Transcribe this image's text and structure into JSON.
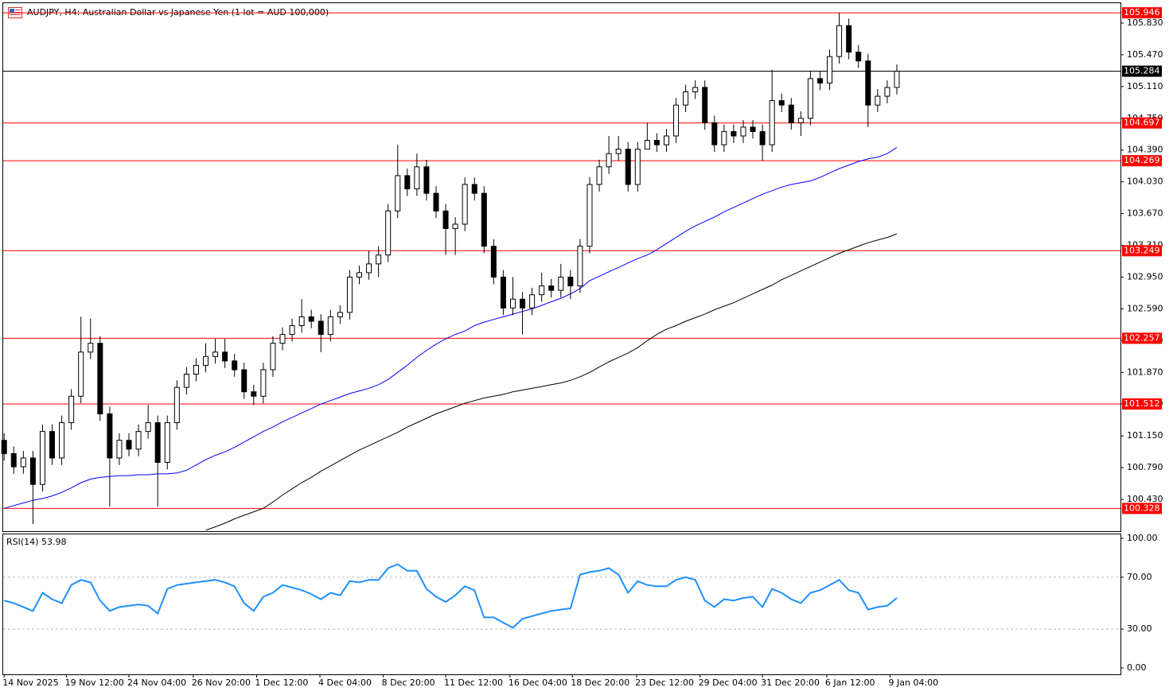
{
  "chart_data": [
    {
      "type": "candlestick",
      "title": "AUDJPY, H4:  Australian Dollar vs Japanese Yen (1 lot = AUD 100,000)",
      "up_color": "#ffffff",
      "down_color": "#000000",
      "wick_color": "#000000",
      "open": [
        101.1,
        100.95,
        100.8,
        100.9,
        100.6,
        101.2,
        100.9,
        101.3,
        101.6,
        102.1,
        102.2,
        101.4,
        100.9,
        101.1,
        101.0,
        101.2,
        101.3,
        100.85,
        101.3,
        101.7,
        101.85,
        101.95,
        102.05,
        102.1,
        102.0,
        101.9,
        101.65,
        101.6,
        101.9,
        102.2,
        102.3,
        102.4,
        102.5,
        102.45,
        102.3,
        102.5,
        102.55,
        102.95,
        103.0,
        103.1,
        103.2,
        103.7,
        104.1,
        103.95,
        104.2,
        103.9,
        103.7,
        103.5,
        103.55,
        104.0,
        103.9,
        103.3,
        102.95,
        102.6,
        102.7,
        102.6,
        102.75,
        102.85,
        102.8,
        102.95,
        102.85,
        103.3,
        104.0,
        104.2,
        104.35,
        104.4,
        104.0,
        104.4,
        104.5,
        104.45,
        104.55,
        104.9,
        105.05,
        105.1,
        104.7,
        104.45,
        104.6,
        104.55,
        104.65,
        104.6,
        104.45,
        104.95,
        104.9,
        104.7,
        104.75,
        105.2,
        105.15,
        105.45,
        105.8,
        105.5,
        105.4,
        104.9,
        105.0,
        105.1
      ],
      "high": [
        101.18,
        101.03,
        100.98,
        100.98,
        101.28,
        101.28,
        101.38,
        101.68,
        102.5,
        102.48,
        102.28,
        101.48,
        101.18,
        101.18,
        101.28,
        101.5,
        101.38,
        101.38,
        101.78,
        101.93,
        102.03,
        102.2,
        102.25,
        102.25,
        102.08,
        101.98,
        101.73,
        101.98,
        102.28,
        102.38,
        102.48,
        102.7,
        102.58,
        102.53,
        102.58,
        102.63,
        103.03,
        103.08,
        103.25,
        103.3,
        103.78,
        104.45,
        104.18,
        104.35,
        104.28,
        103.98,
        103.78,
        103.63,
        104.08,
        104.08,
        103.98,
        103.38,
        103.03,
        102.95,
        102.78,
        102.83,
        103.0,
        102.93,
        103.1,
        103.03,
        103.38,
        104.08,
        104.28,
        104.55,
        104.55,
        104.48,
        104.48,
        104.7,
        104.58,
        104.63,
        104.98,
        105.13,
        105.18,
        105.18,
        104.78,
        104.68,
        104.68,
        104.73,
        104.73,
        104.68,
        105.3,
        105.03,
        104.98,
        104.83,
        105.28,
        105.28,
        105.53,
        105.946,
        105.88,
        105.58,
        105.48,
        105.08,
        105.18,
        105.36
      ],
      "low": [
        100.87,
        100.72,
        100.72,
        100.15,
        100.52,
        100.82,
        100.82,
        101.22,
        101.52,
        102.02,
        101.32,
        100.35,
        100.82,
        100.92,
        100.92,
        101.12,
        100.35,
        100.77,
        101.22,
        101.62,
        101.77,
        101.87,
        101.97,
        101.92,
        101.82,
        101.57,
        101.5,
        101.52,
        101.82,
        102.12,
        102.22,
        102.32,
        102.37,
        102.1,
        102.22,
        102.42,
        102.47,
        102.87,
        102.92,
        102.95,
        103.12,
        103.62,
        103.87,
        103.87,
        103.82,
        103.62,
        103.2,
        103.2,
        103.47,
        103.82,
        103.22,
        102.87,
        102.52,
        102.52,
        102.3,
        102.52,
        102.67,
        102.72,
        102.72,
        102.7,
        102.77,
        103.22,
        103.92,
        104.12,
        104.27,
        103.92,
        103.92,
        104.42,
        104.37,
        104.37,
        104.47,
        104.82,
        104.97,
        104.62,
        104.37,
        104.37,
        104.47,
        104.47,
        104.52,
        104.27,
        104.37,
        104.82,
        104.62,
        104.55,
        104.67,
        105.07,
        105.07,
        105.37,
        105.42,
        105.32,
        104.65,
        104.82,
        104.92,
        105.02
      ],
      "close": [
        100.95,
        100.8,
        100.9,
        100.6,
        101.2,
        100.9,
        101.3,
        101.6,
        102.1,
        102.2,
        101.4,
        100.9,
        101.1,
        101.0,
        101.2,
        101.3,
        100.85,
        101.3,
        101.7,
        101.85,
        101.95,
        102.05,
        102.1,
        102.0,
        101.9,
        101.65,
        101.6,
        101.9,
        102.2,
        102.3,
        102.4,
        102.5,
        102.45,
        102.3,
        102.5,
        102.55,
        102.95,
        103.0,
        103.1,
        103.2,
        103.7,
        104.1,
        103.95,
        104.2,
        103.9,
        103.7,
        103.5,
        103.55,
        104.0,
        103.9,
        103.3,
        102.95,
        102.6,
        102.7,
        102.6,
        102.75,
        102.85,
        102.8,
        102.95,
        102.85,
        103.3,
        104.0,
        104.2,
        104.35,
        104.4,
        104.0,
        104.4,
        104.5,
        104.45,
        104.55,
        104.9,
        105.05,
        105.1,
        104.7,
        104.45,
        104.6,
        104.55,
        104.65,
        104.6,
        104.45,
        104.95,
        104.9,
        104.7,
        104.75,
        105.2,
        105.15,
        105.45,
        105.8,
        105.5,
        105.4,
        104.9,
        105.0,
        105.1,
        105.284
      ],
      "overlays": [
        {
          "color": "#0000ff",
          "values": [
            100.33,
            100.36,
            100.39,
            100.42,
            100.44,
            100.47,
            100.51,
            100.56,
            100.62,
            100.66,
            100.68,
            100.69,
            100.7,
            100.7,
            100.71,
            100.71,
            100.72,
            100.72,
            100.73,
            100.76,
            100.82,
            100.88,
            100.93,
            100.97,
            101.02,
            101.08,
            101.14,
            101.2,
            101.25,
            101.31,
            101.36,
            101.41,
            101.46,
            101.51,
            101.55,
            101.59,
            101.63,
            101.66,
            101.69,
            101.73,
            101.79,
            101.87,
            101.95,
            102.04,
            102.12,
            102.19,
            102.25,
            102.3,
            102.34,
            102.4,
            102.44,
            102.47,
            102.5,
            102.53,
            102.56,
            102.59,
            102.63,
            102.67,
            102.71,
            102.76,
            102.82,
            102.91,
            102.96,
            103.01,
            103.06,
            103.11,
            103.16,
            103.2,
            103.26,
            103.33,
            103.4,
            103.47,
            103.53,
            103.58,
            103.63,
            103.69,
            103.74,
            103.79,
            103.84,
            103.89,
            103.93,
            103.97,
            104.0,
            104.02,
            104.04,
            104.08,
            104.13,
            104.18,
            104.22,
            104.26,
            104.29,
            104.31,
            104.35,
            104.42
          ]
        },
        {
          "color": "#000000",
          "values": [
            null,
            null,
            null,
            null,
            null,
            null,
            null,
            null,
            null,
            null,
            null,
            null,
            null,
            null,
            null,
            null,
            null,
            null,
            null,
            null,
            null,
            100.08,
            100.12,
            100.16,
            100.21,
            100.25,
            100.29,
            100.33,
            100.4,
            100.48,
            100.55,
            100.62,
            100.68,
            100.75,
            100.81,
            100.87,
            100.93,
            100.99,
            101.04,
            101.09,
            101.14,
            101.19,
            101.25,
            101.3,
            101.35,
            101.4,
            101.44,
            101.48,
            101.52,
            101.55,
            101.58,
            101.6,
            101.62,
            101.65,
            101.67,
            101.69,
            101.71,
            101.73,
            101.75,
            101.78,
            101.82,
            101.87,
            101.93,
            101.99,
            102.04,
            102.09,
            102.15,
            102.23,
            102.3,
            102.36,
            102.4,
            102.45,
            102.49,
            102.53,
            102.58,
            102.62,
            102.66,
            102.71,
            102.76,
            102.81,
            102.86,
            102.92,
            102.97,
            103.02,
            103.07,
            103.12,
            103.17,
            103.22,
            103.26,
            103.3,
            103.34,
            103.37,
            103.4,
            103.44
          ]
        }
      ],
      "level_color": "#ff0000",
      "levels": [
        {
          "value": 105.946,
          "label": "105.946"
        },
        {
          "value": 104.697,
          "label": "104.697"
        },
        {
          "value": 104.269,
          "label": "104.269"
        },
        {
          "value": 103.249,
          "label": "103.249"
        },
        {
          "value": 102.257,
          "label": "102.257"
        },
        {
          "value": 101.512,
          "label": "101.512"
        },
        {
          "value": 100.328,
          "label": "100.328"
        }
      ],
      "current_price": {
        "value": 105.284,
        "label": "105.284"
      },
      "xlim": [
        -0.1,
        116.3
      ],
      "xticks": [
        {
          "value": 0,
          "label": "14 Nov 2025"
        },
        {
          "value": 6.5,
          "label": "19 Nov 12:00"
        },
        {
          "value": 13,
          "label": "24 Nov 04:00"
        },
        {
          "value": 19.7,
          "label": "26 Nov 20:00"
        },
        {
          "value": 26.3,
          "label": "1 Dec 12:00"
        },
        {
          "value": 32.9,
          "label": "4 Dec 04:00"
        },
        {
          "value": 39.5,
          "label": "8 Dec 20:00"
        },
        {
          "value": 46,
          "label": "11 Dec 12:00"
        },
        {
          "value": 52.7,
          "label": "16 Dec 04:00"
        },
        {
          "value": 59.2,
          "label": "18 Dec 20:00"
        },
        {
          "value": 65.9,
          "label": "23 Dec 12:00"
        },
        {
          "value": 72.5,
          "label": "29 Dec 04:00"
        },
        {
          "value": 79,
          "label": "31 Dec 20:00"
        },
        {
          "value": 85.7,
          "label": "6 Jan 12:00"
        },
        {
          "value": 92.3,
          "label": "9 Jan 04:00"
        }
      ],
      "ylim": [
        100.07,
        106.064
      ],
      "yticks": [
        {
          "value": 100.43,
          "label": "100.430"
        },
        {
          "value": 100.79,
          "label": "100.790"
        },
        {
          "value": 101.15,
          "label": "101.150"
        },
        {
          "value": 101.51,
          "label": "101.510"
        },
        {
          "value": 101.87,
          "label": "101.870"
        },
        {
          "value": 102.23,
          "label": "102.230"
        },
        {
          "value": 102.59,
          "label": "102.590"
        },
        {
          "value": 102.95,
          "label": "102.950"
        },
        {
          "value": 103.31,
          "label": "103.310"
        },
        {
          "value": 103.67,
          "label": "103.670"
        },
        {
          "value": 104.03,
          "label": "104.030"
        },
        {
          "value": 104.39,
          "label": "104.390"
        },
        {
          "value": 104.75,
          "label": "104.750"
        },
        {
          "value": 105.11,
          "label": "105.110"
        },
        {
          "value": 105.47,
          "label": "105.470"
        },
        {
          "value": 105.83,
          "label": "105.830"
        }
      ]
    },
    {
      "type": "line",
      "title": "RSI(14) 53.98",
      "color": "#1e90ff",
      "values": [
        52,
        50,
        47,
        44,
        58,
        53,
        50,
        64,
        68,
        66,
        52,
        44,
        47,
        48,
        49,
        48,
        42,
        61,
        64,
        65,
        66,
        67,
        68,
        66,
        63,
        50,
        44,
        55,
        58,
        64,
        62,
        60,
        57,
        53,
        58,
        56,
        67,
        66,
        68,
        68,
        77,
        80,
        75,
        75,
        61,
        55,
        51,
        56,
        63,
        60,
        39,
        39,
        35,
        31,
        38,
        40,
        42,
        44,
        45,
        46,
        72,
        74,
        75,
        77,
        72,
        58,
        67,
        64,
        63,
        63,
        68,
        70,
        68,
        52,
        47,
        53,
        52,
        54,
        55,
        47,
        61,
        58,
        53,
        50,
        58,
        60,
        64,
        68,
        60,
        58,
        45,
        47,
        48,
        53.98
      ],
      "ylim": [
        0,
        100
      ],
      "yticks": [
        {
          "value": 0,
          "label": "0.00"
        },
        {
          "value": 30,
          "label": "30.00"
        },
        {
          "value": 70,
          "label": "70.00"
        },
        {
          "value": 100,
          "label": "100.00"
        }
      ]
    }
  ]
}
